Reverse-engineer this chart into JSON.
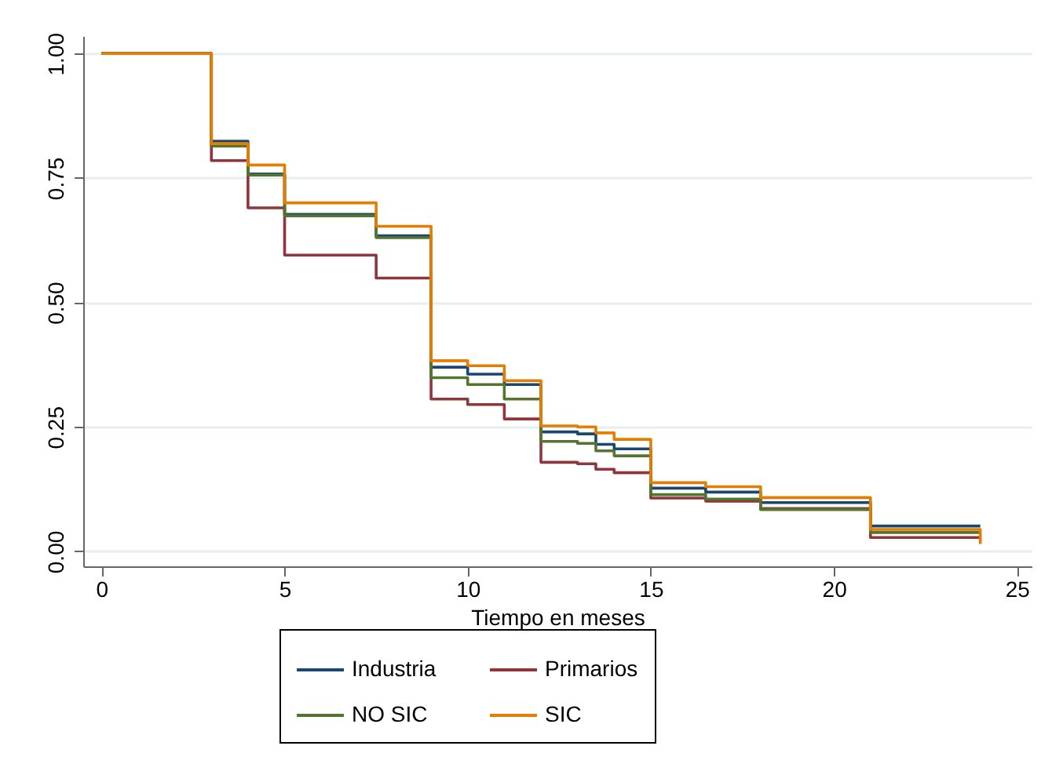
{
  "chart_data": {
    "type": "step",
    "xlabel": "Tiempo en meses",
    "xlim": [
      -0.5,
      25.4
    ],
    "ylim": [
      -0.03,
      1.035
    ],
    "xticks": [
      0,
      5,
      10,
      15,
      20,
      25
    ],
    "yticks": [
      {
        "value": 0,
        "label": "0.00"
      },
      {
        "value": 0.25,
        "label": "0.25"
      },
      {
        "value": 0.5,
        "label": "0.50"
      },
      {
        "value": 0.75,
        "label": "0.75"
      },
      {
        "value": 1,
        "label": "1.00"
      }
    ],
    "grid": "y",
    "legend": "bottom",
    "line_style": "solid",
    "series": [
      {
        "name": "Industria",
        "color": "#1a476f",
        "x": [
          0,
          3,
          4,
          5,
          7.5,
          9,
          10,
          11,
          12,
          13,
          13.5,
          14,
          15,
          16.5,
          18,
          21,
          24
        ],
        "values": [
          1,
          0.824,
          0.758,
          0.677,
          0.634,
          0.37,
          0.356,
          0.335,
          0.24,
          0.236,
          0.215,
          0.206,
          0.127,
          0.119,
          0.098,
          0.051,
          0.051
        ]
      },
      {
        "name": "Primarios",
        "color": "#90353b",
        "x": [
          0,
          3,
          4,
          5,
          7.5,
          9,
          10,
          11,
          12,
          13,
          13.5,
          14,
          15,
          16.5,
          18,
          21,
          24
        ],
        "values": [
          1,
          0.785,
          0.69,
          0.595,
          0.549,
          0.306,
          0.295,
          0.266,
          0.179,
          0.176,
          0.165,
          0.158,
          0.107,
          0.101,
          0.086,
          0.028,
          0.028
        ]
      },
      {
        "name": "NO SIC",
        "color": "#55752f",
        "x": [
          0,
          3,
          4,
          5,
          7.5,
          9,
          10,
          11,
          12,
          13,
          13.5,
          14,
          15,
          16.5,
          18,
          21,
          24
        ],
        "values": [
          1,
          0.814,
          0.756,
          0.674,
          0.63,
          0.349,
          0.335,
          0.306,
          0.221,
          0.217,
          0.202,
          0.192,
          0.114,
          0.105,
          0.084,
          0.038,
          0.038
        ]
      },
      {
        "name": "SIC",
        "color": "#e37e00",
        "x": [
          0,
          3,
          4,
          5,
          7.5,
          9,
          10,
          11,
          12,
          13,
          13.5,
          14,
          15,
          16.5,
          18,
          21,
          24
        ],
        "values": [
          1,
          0.819,
          0.776,
          0.7,
          0.653,
          0.383,
          0.373,
          0.343,
          0.252,
          0.25,
          0.238,
          0.225,
          0.138,
          0.13,
          0.108,
          0.044,
          0.015
        ]
      }
    ]
  }
}
